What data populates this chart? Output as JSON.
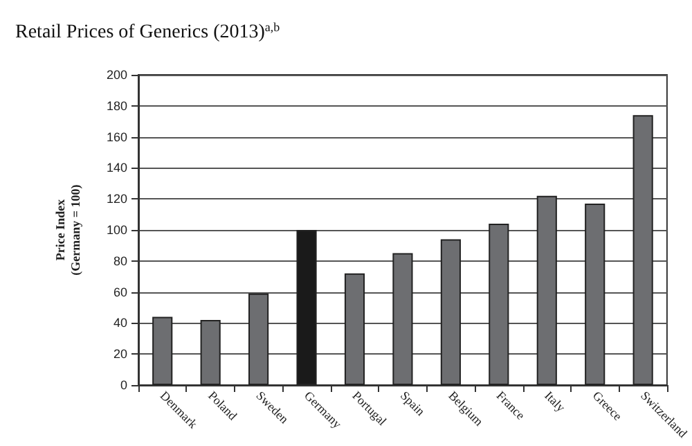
{
  "chart_data": {
    "type": "bar",
    "title": "Retail Prices of Generics (2013)$^{a,b}$",
    "ylabel": "Price Index\n(Germany = 100)",
    "categories": [
      "Denmark",
      "Poland",
      "Sweden",
      "Germany",
      "Portugal",
      "Spain",
      "Belgium",
      "France",
      "Italy",
      "Greece",
      "Switzerland"
    ],
    "values": [
      44,
      42,
      59,
      100,
      72,
      85,
      94,
      104,
      122,
      117,
      174
    ],
    "colors": [
      "#6d6e71",
      "#6d6e71",
      "#6d6e71",
      "#1a1a1a",
      "#6d6e71",
      "#6d6e71",
      "#6d6e71",
      "#6d6e71",
      "#6d6e71",
      "#6d6e71",
      "#6d6e71"
    ],
    "ylim": [
      0,
      200
    ],
    "yticks": [
      0,
      20,
      40,
      60,
      80,
      100,
      120,
      140,
      160,
      180,
      200
    ],
    "grid": "y"
  }
}
